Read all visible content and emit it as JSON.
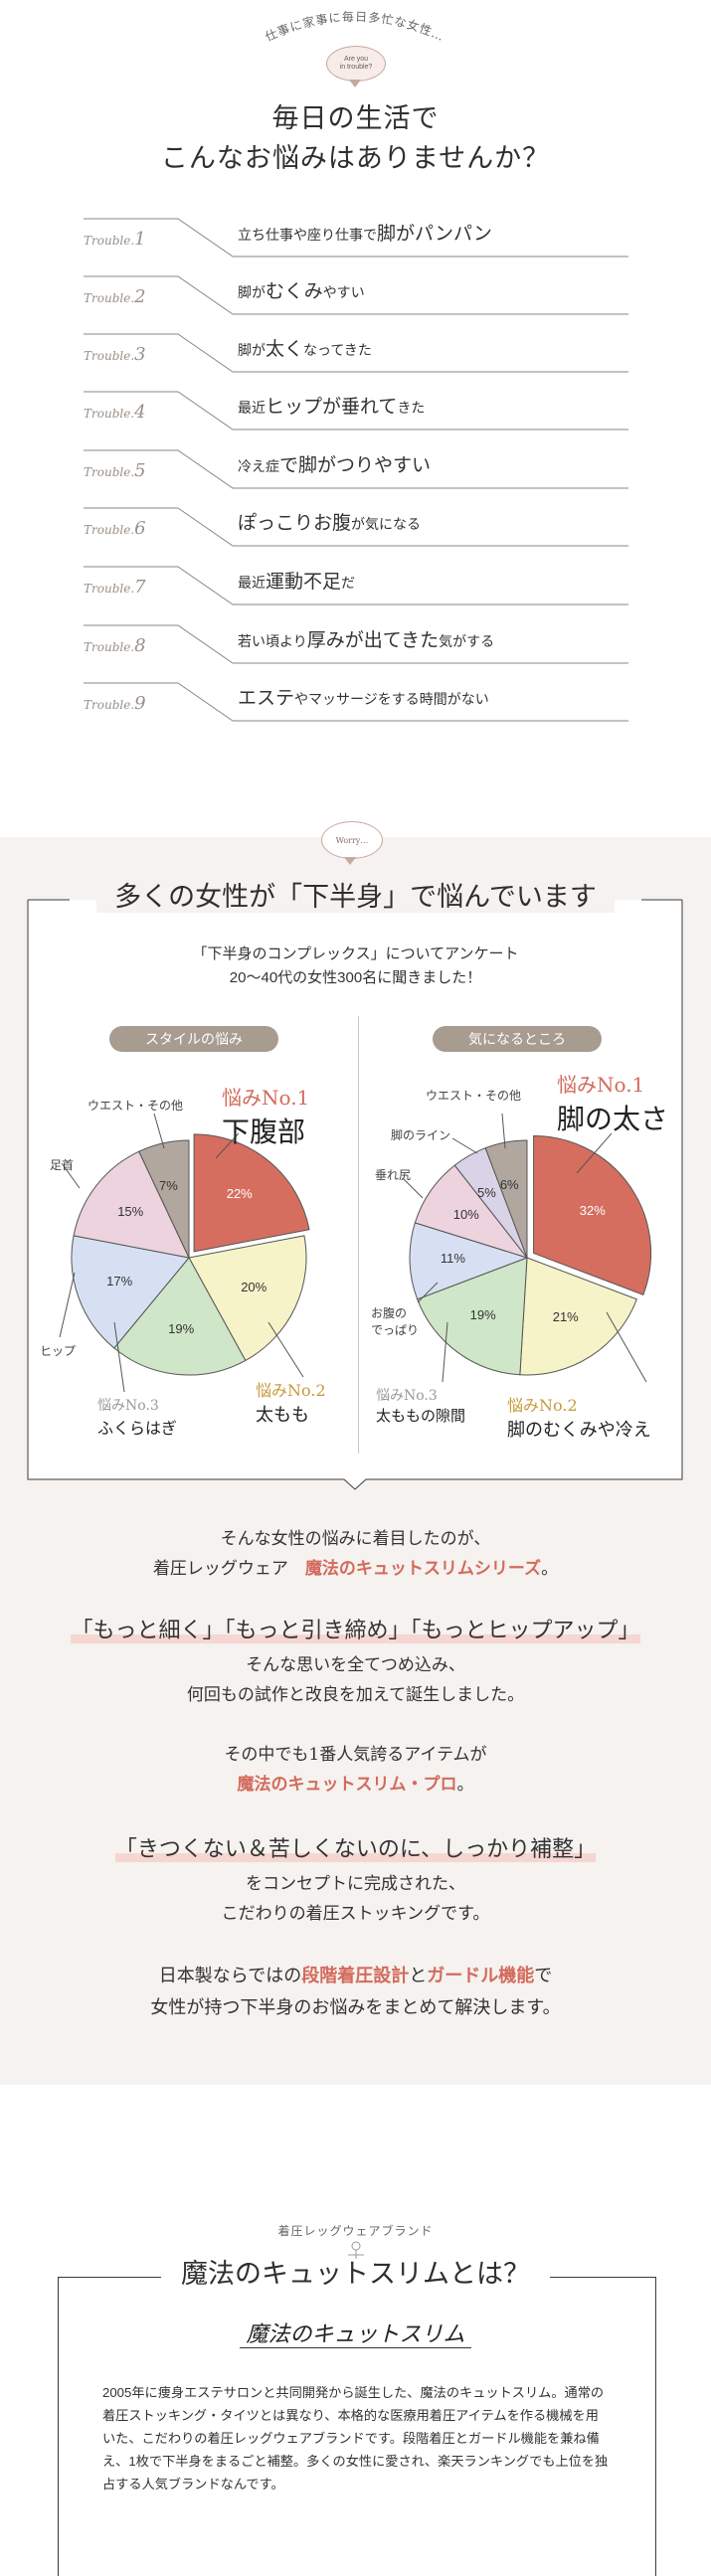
{
  "hero": {
    "arc_text": "仕事に家事に毎日多忙な女性…",
    "bubble_line1": "Are you",
    "bubble_line2": "in trouble?",
    "title_line1": "毎日の生活で",
    "title_line2": "こんなお悩みはありませんか？"
  },
  "troubles": [
    {
      "label": "Trouble.",
      "num": "1",
      "pre": "立ち仕事や座り仕事で",
      "em": "脚がパンパン",
      "post": ""
    },
    {
      "label": "Trouble.",
      "num": "2",
      "pre": "脚が",
      "em": "むくみ",
      "post": "やすい"
    },
    {
      "label": "Trouble.",
      "num": "3",
      "pre": "脚が",
      "em": "太く",
      "post": "なってきた"
    },
    {
      "label": "Trouble.",
      "num": "4",
      "pre": "最近",
      "em": "ヒップが垂れて",
      "post": "きた"
    },
    {
      "label": "Trouble.",
      "num": "5",
      "pre": "冷え症",
      "em": "で脚がつりやすい",
      "post": ""
    },
    {
      "label": "Trouble.",
      "num": "6",
      "pre": "",
      "em": "ぽっこりお腹",
      "post": "が気になる"
    },
    {
      "label": "Trouble.",
      "num": "7",
      "pre": "最近",
      "em": "運動不足",
      "post": "だ"
    },
    {
      "label": "Trouble.",
      "num": "8",
      "pre": "若い頃より",
      "em": "厚みが出てきた",
      "post": "気がする"
    },
    {
      "label": "Trouble.",
      "num": "9",
      "pre": "",
      "em": "エステ",
      "post": "やマッサージをする時間がない"
    }
  ],
  "survey": {
    "worry_bubble": "Worry…",
    "title": "多くの女性が「下半身」で悩んでいます",
    "sub_line1": "「下半身のコンプレックス」についてアンケート",
    "sub_line2": "20～40代の女性300名に聞きました！",
    "left_pill": "スタイルの悩み",
    "right_pill": "気になるところ",
    "left": {
      "no1_tag": "悩みNo.1",
      "no1_text": "下腹部",
      "no2_tag": "悩みNo.2",
      "no2_text": "太もも",
      "no3_tag": "悩みNo.3",
      "no3_text": "ふくらはぎ",
      "label_waist": "ウエスト・その他",
      "label_neck": "足首",
      "label_hip": "ヒップ"
    },
    "right": {
      "no1_tag": "悩みNo.1",
      "no1_text": "脚の太さ",
      "no2_tag": "悩みNo.2",
      "no2_text": "脚のむくみや冷え",
      "no3_tag": "悩みNo.3",
      "no3_text": "太ももの隙間",
      "label_waist": "ウエスト・その他",
      "label_legline": "脚のライン",
      "label_hip": "垂れ尻",
      "label_belly1": "お腹の",
      "label_belly2": "でっぱり"
    }
  },
  "chart_data": [
    {
      "type": "pie",
      "title": "スタイルの悩み",
      "categories": [
        "下腹部",
        "太もも",
        "ふくらはぎ",
        "ヒップ",
        "足首",
        "ウエスト・その他"
      ],
      "values": [
        22,
        20,
        19,
        17,
        15,
        7
      ],
      "value_labels": [
        "22%",
        "20%",
        "19%",
        "17%",
        "15%",
        "7%"
      ],
      "colors": [
        "#d56e5f",
        "#f6f3c8",
        "#cfe6c8",
        "#d7e0f3",
        "#ecd3dd",
        "#b1a79e"
      ]
    },
    {
      "type": "pie",
      "title": "気になるところ",
      "categories": [
        "脚の太さ",
        "脚のむくみや冷え",
        "太ももの隙間",
        "お腹のでっぱり",
        "垂れ尻",
        "脚のライン",
        "ウエスト・その他"
      ],
      "values": [
        32,
        21,
        19,
        11,
        10,
        5,
        6
      ],
      "value_labels": [
        "32%",
        "21%",
        "19%",
        "11%",
        "10%",
        "5%",
        "6%"
      ],
      "colors": [
        "#d56e5f",
        "#f6f3c8",
        "#cfe6c8",
        "#d7e0f3",
        "#ecd3dd",
        "#d8d3e6",
        "#b1a79e"
      ]
    }
  ],
  "message": {
    "p1_line1": "そんな女性の悩みに着目したのが、",
    "p1_line2_pre": "着圧レッグウェア",
    "p1_line2_red": "魔法のキュットスリムシリーズ",
    "p1_line2_post": "。",
    "p2_big": "「もっと細く」「もっと引き締め」「もっとヒップアップ」",
    "p2_line1": "そんな思いを全てつめ込み、",
    "p2_line2": "何回もの試作と改良を加えて誕生しました。",
    "p3_line1": "その中でも1番人気誇るアイテムが",
    "p3_red": "魔法のキュットスリム・プロ",
    "p3_red_post": "。",
    "p4_big": "「きつくない＆苦しくないのに、しっかり補整」",
    "p4_line1": "をコンセプトに完成された、",
    "p4_line2": "こだわりの着圧ストッキングです。",
    "p5_pre": "日本製ならではの",
    "p5_red1": "段階着圧設計",
    "p5_mid": "と",
    "p5_red2": "ガードル機能",
    "p5_post": "で",
    "p5_line2": "女性が持つ下半身のお悩みをまとめて解決します。"
  },
  "brand": {
    "small": "着圧レッグウェアブランド",
    "title": "魔法のキュットスリムとは？",
    "logo": "魔法のキュットスリム",
    "desc": "2005年に痩身エステサロンと共同開発から誕生した、魔法のキュットスリム。通常の着圧ストッキング・タイツとは異なり、本格的な医療用着圧アイテムを作る機械を用いた、こだわりの着圧レッグウェアブランドです。段階着圧とガードル機能を兼ね備え、1枚で下半身をまるごと補整。多くの女性に愛され、楽天ランキングでも上位を独占する人気ブランドなんです。"
  }
}
